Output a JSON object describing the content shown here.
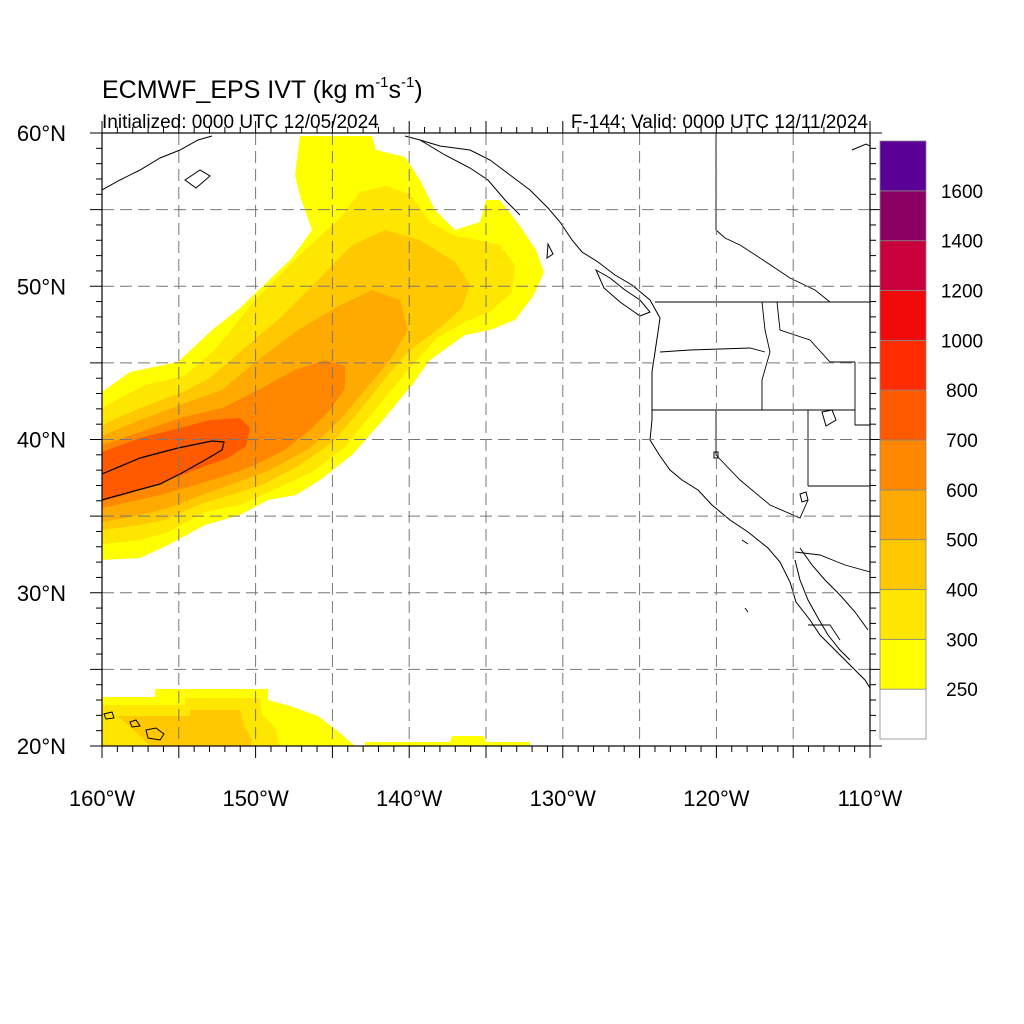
{
  "title": {
    "main": "ECMWF_EPS IVT (kg m",
    "sup1": "-1",
    "mid": "s",
    "sup2": "-1",
    "end": ")"
  },
  "subtitle_left": "Initialized: 0000 UTC 12/05/2024",
  "subtitle_right": "F-144: Valid: 0000 UTC 12/11/2024",
  "map": {
    "lon_range": [
      -160,
      -110
    ],
    "lat_range": [
      20,
      60
    ],
    "projection": "cylindrical equidistant",
    "grid": "dashed 5 degree",
    "lon_ticks": [
      {
        "lon": -160,
        "label": "160°W"
      },
      {
        "lon": -150,
        "label": "150°W"
      },
      {
        "lon": -140,
        "label": "140°W"
      },
      {
        "lon": -130,
        "label": "130°W"
      },
      {
        "lon": -120,
        "label": "120°W"
      },
      {
        "lon": -110,
        "label": "110°W"
      }
    ],
    "lat_ticks": [
      {
        "lat": 60,
        "label": "60°N"
      },
      {
        "lat": 50,
        "label": "50°N"
      },
      {
        "lat": 40,
        "label": "40°N"
      },
      {
        "lat": 30,
        "label": "30°N"
      },
      {
        "lat": 20,
        "label": "20°N"
      }
    ],
    "features": {
      "atmospheric_river_core_ivt": "700-800",
      "atmospheric_river_max_ivt": "800",
      "secondary_band": "near Hawaii 250-400"
    }
  },
  "colorbar": {
    "colors": [
      "#ffffff",
      "#ffff00",
      "#ffe600",
      "#ffc800",
      "#ffaa00",
      "#ff8800",
      "#ff5a00",
      "#ff2d00",
      "#f00a0a",
      "#c8003c",
      "#8c0064",
      "#5a0096"
    ],
    "labels": [
      "250",
      "300",
      "400",
      "500",
      "600",
      "700",
      "800",
      "1000",
      "1200",
      "1400",
      "1600"
    ]
  }
}
